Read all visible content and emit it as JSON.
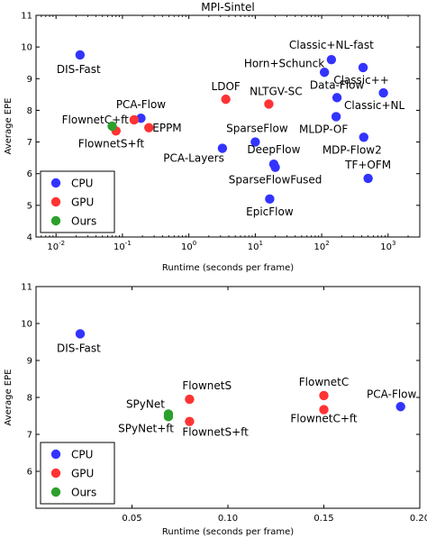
{
  "colors": {
    "CPU": "#3333ff",
    "GPU": "#ff3333",
    "Ours": "#2ca02c"
  },
  "chart_data": [
    {
      "type": "scatter",
      "title": "MPI-Sintel",
      "xlabel": "Runtime (seconds per frame)",
      "ylabel": "Average EPE",
      "xscale": "log",
      "xlim": [
        0.005,
        3000
      ],
      "ylim": [
        4,
        11
      ],
      "xticks": [
        0.01,
        0.1,
        1,
        10,
        100,
        1000
      ],
      "xtick_labels": [
        "10",
        "10",
        "10",
        "10",
        "10",
        "10"
      ],
      "xtick_exponents": [
        "-2",
        "-1",
        "0",
        "1",
        "2",
        "3"
      ],
      "yticks": [
        4,
        5,
        6,
        7,
        8,
        9,
        10,
        11
      ],
      "ytick_labels": [
        "4",
        "5",
        "6",
        "7",
        "8",
        "9",
        "10",
        "11"
      ],
      "legend": {
        "position": "bottom-left",
        "entries": [
          "CPU",
          "GPU",
          "Ours"
        ]
      },
      "points": [
        {
          "label": "DIS-Fast",
          "x": 0.023,
          "y": 9.75,
          "group": "CPU",
          "anchor": "start",
          "dx": -26,
          "dy": 20
        },
        {
          "label": "PCA-Flow",
          "x": 0.19,
          "y": 7.75,
          "group": "CPU",
          "anchor": "middle",
          "dx": 0,
          "dy": -11
        },
        {
          "label": "PCA-Layers",
          "x": 3.2,
          "y": 6.8,
          "group": "CPU",
          "anchor": "end",
          "dx": 2,
          "dy": 15
        },
        {
          "label": "SparseFlow",
          "x": 10,
          "y": 7.0,
          "group": "CPU",
          "anchor": "middle",
          "dx": 2,
          "dy": -11
        },
        {
          "label": "DeepFlow",
          "x": 19,
          "y": 6.3,
          "group": "CPU",
          "anchor": "middle",
          "dx": 0,
          "dy": -12
        },
        {
          "label": "SparseFlowFused",
          "x": 20,
          "y": 6.2,
          "group": "CPU",
          "anchor": "middle",
          "dx": 0,
          "dy": 18
        },
        {
          "label": "EpicFlow",
          "x": 16.5,
          "y": 5.2,
          "group": "CPU",
          "anchor": "middle",
          "dx": 0,
          "dy": 18
        },
        {
          "label": "Horn+Schunck",
          "x": 110,
          "y": 9.2,
          "group": "CPU",
          "anchor": "end",
          "dx": 0,
          "dy": -6
        },
        {
          "label": "Classic+NL-fast",
          "x": 140,
          "y": 9.6,
          "group": "CPU",
          "anchor": "middle",
          "dx": 0,
          "dy": -12
        },
        {
          "label": "Classic++",
          "x": 420,
          "y": 9.35,
          "group": "CPU",
          "anchor": "middle",
          "dx": -2,
          "dy": 18
        },
        {
          "label": "Data-Flow",
          "x": 170,
          "y": 8.4,
          "group": "CPU",
          "anchor": "middle",
          "dx": 0,
          "dy": -10
        },
        {
          "label": "Classic+NL",
          "x": 850,
          "y": 8.55,
          "group": "CPU",
          "anchor": "middle",
          "dx": -10,
          "dy": 18
        },
        {
          "label": "MLDP-OF",
          "x": 165,
          "y": 7.8,
          "group": "CPU",
          "anchor": "middle",
          "dx": -14,
          "dy": 18
        },
        {
          "label": "MDP-Flow2",
          "x": 430,
          "y": 7.15,
          "group": "CPU",
          "anchor": "middle",
          "dx": -13,
          "dy": 18
        },
        {
          "label": "TF+OFM",
          "x": 500,
          "y": 5.85,
          "group": "CPU",
          "anchor": "middle",
          "dx": 0,
          "dy": -11
        },
        {
          "label": "LDOF",
          "x": 3.6,
          "y": 8.35,
          "group": "GPU",
          "anchor": "middle",
          "dx": 0,
          "dy": -10
        },
        {
          "label": "NLTGV-SC",
          "x": 16,
          "y": 8.2,
          "group": "GPU",
          "anchor": "middle",
          "dx": 8,
          "dy": -10
        },
        {
          "label": "EPPM",
          "x": 0.25,
          "y": 7.45,
          "group": "GPU",
          "anchor": "start",
          "dx": 4,
          "dy": 4
        },
        {
          "label": "FlownetC+ft",
          "x": 0.15,
          "y": 7.7,
          "group": "GPU",
          "anchor": "end",
          "dx": -6,
          "dy": 4
        },
        {
          "label": "FlownetS+ft",
          "x": 0.08,
          "y": 7.35,
          "group": "GPU",
          "anchor": "start",
          "dx": -42,
          "dy": 18
        },
        {
          "label": "",
          "x": 0.07,
          "y": 7.5,
          "group": "Ours",
          "anchor": "middle",
          "dx": 0,
          "dy": 0
        }
      ]
    },
    {
      "type": "scatter",
      "title": "",
      "xlabel": "Runtime (seconds per frame)",
      "ylabel": "Average EPE",
      "xscale": "linear",
      "xlim": [
        0,
        0.2
      ],
      "ylim": [
        5,
        11
      ],
      "xticks": [
        0.05,
        0.1,
        0.15,
        0.2
      ],
      "xtick_labels": [
        "0.05",
        "0.10",
        "0.15",
        "0.20"
      ],
      "yticks": [
        6,
        7,
        8,
        9,
        10,
        11
      ],
      "ytick_labels": [
        "6",
        "7",
        "8",
        "9",
        "10",
        "11"
      ],
      "legend": {
        "position": "bottom-left",
        "entries": [
          "CPU",
          "GPU",
          "Ours"
        ]
      },
      "points": [
        {
          "label": "DIS-Fast",
          "x": 0.023,
          "y": 9.72,
          "group": "CPU",
          "anchor": "start",
          "dx": -26,
          "dy": 20
        },
        {
          "label": "PCA-Flow",
          "x": 0.19,
          "y": 7.75,
          "group": "CPU",
          "anchor": "middle",
          "dx": -10,
          "dy": -10
        },
        {
          "label": "FlownetS",
          "x": 0.08,
          "y": 7.95,
          "group": "GPU",
          "anchor": "start",
          "dx": -8,
          "dy": -11
        },
        {
          "label": "FlownetS+ft",
          "x": 0.08,
          "y": 7.35,
          "group": "GPU",
          "anchor": "start",
          "dx": -8,
          "dy": 16
        },
        {
          "label": "FlownetC",
          "x": 0.15,
          "y": 8.05,
          "group": "GPU",
          "anchor": "middle",
          "dx": 0,
          "dy": -11
        },
        {
          "label": "FlownetC+ft",
          "x": 0.15,
          "y": 7.67,
          "group": "GPU",
          "anchor": "middle",
          "dx": 0,
          "dy": 14
        },
        {
          "label": "SPyNet",
          "x": 0.069,
          "y": 7.55,
          "group": "Ours",
          "anchor": "end",
          "dx": -4,
          "dy": -7
        },
        {
          "label": "SPyNet+ft",
          "x": 0.069,
          "y": 7.48,
          "group": "Ours",
          "anchor": "end",
          "dx": 6,
          "dy": 17
        }
      ]
    }
  ]
}
